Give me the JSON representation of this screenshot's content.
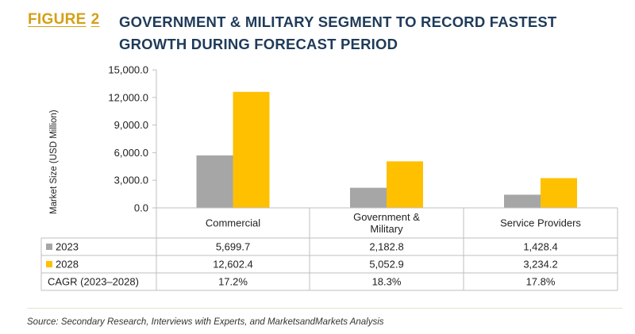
{
  "header": {
    "figure_word": "FIGURE",
    "figure_num": "2",
    "title": "GOVERNMENT & MILITARY SEGMENT TO RECORD FASTEST GROWTH DURING FORECAST PERIOD"
  },
  "chart_data": {
    "type": "bar",
    "title": "GOVERNMENT & MILITARY SEGMENT TO RECORD FASTEST GROWTH DURING FORECAST PERIOD",
    "ylabel": "Market Size (USD Million)",
    "xlabel": "",
    "ylim": [
      0,
      15000
    ],
    "yticks": [
      0,
      3000,
      6000,
      9000,
      12000,
      15000
    ],
    "ytick_labels": [
      "0.0",
      "3,000.0",
      "6,000.0",
      "9,000.0",
      "12,000.0",
      "15,000.0"
    ],
    "categories": [
      "Commercial",
      "Government & Military",
      "Service Providers"
    ],
    "category_lines": [
      [
        "Commercial"
      ],
      [
        "Government &",
        "Military"
      ],
      [
        "Service Providers"
      ]
    ],
    "series": [
      {
        "name": "2023",
        "color": "#a6a6a6",
        "values": [
          5699.7,
          2182.8,
          1428.4
        ],
        "labels": [
          "5,699.7",
          "2,182.8",
          "1,428.4"
        ]
      },
      {
        "name": "2028",
        "color": "#ffc000",
        "values": [
          12602.4,
          5052.9,
          3234.2
        ],
        "labels": [
          "12,602.4",
          "5,052.9",
          "3,234.2"
        ]
      }
    ],
    "extra_rows": [
      {
        "name": "CAGR (2023–2028)",
        "labels": [
          "17.2%",
          "18.3%",
          "17.8%"
        ]
      }
    ],
    "grid": false,
    "legend": "data-table"
  },
  "footer": {
    "source": "Source: Secondary Research, Interviews with Experts, and MarketsandMarkets Analysis"
  }
}
